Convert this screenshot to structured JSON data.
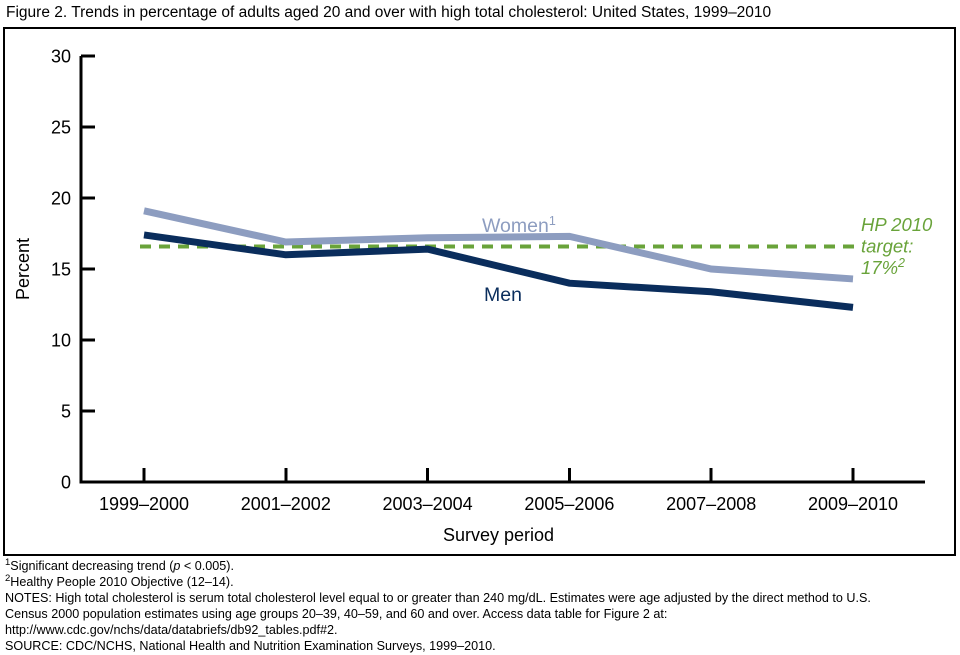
{
  "chart_data": {
    "type": "line",
    "title": "Figure 2. Trends in percentage of adults aged 20 and over with high total cholesterol: United States, 1999–2010",
    "xlabel": "Survey period",
    "ylabel": "Percent",
    "ylim": [
      0,
      30
    ],
    "yticks": [
      0,
      5,
      10,
      15,
      20,
      25,
      30
    ],
    "grid": false,
    "legend_position": "inline-labels",
    "categories": [
      "1999–2000",
      "2001–2002",
      "2003–2004",
      "2005–2006",
      "2007–2008",
      "2009–2010"
    ],
    "series": [
      {
        "name": "Women",
        "sup": "1",
        "color": "#8d9dc0",
        "values": [
          19.1,
          16.9,
          17.2,
          17.3,
          15.0,
          14.3
        ]
      },
      {
        "name": "Men",
        "sup": "",
        "color": "#0a2d5c",
        "values": [
          17.4,
          16.0,
          16.4,
          14.0,
          13.4,
          12.3
        ]
      }
    ],
    "target_line": {
      "label_lines": [
        "HP 2010",
        "target:",
        "17%"
      ],
      "label_sup": "2",
      "value_label": "17%",
      "drawn_at": 16.6,
      "color": "#69a33a",
      "style": "dashed"
    },
    "axis_color": "#000000"
  },
  "footnotes": {
    "fn1_sup": "1",
    "fn1_pre": "Significant decreasing trend (",
    "fn1_italic": "p",
    "fn1_post": " < 0.005).",
    "fn2_sup": "2",
    "fn2_text": "Healthy People 2010 Objective (12–14).",
    "notes_line1": "NOTES: High total cholesterol is serum total cholesterol level equal to or greater than 240 mg/dL. Estimates were age adjusted by the direct method to U.S.",
    "notes_line2": "Census 2000 population estimates using age groups 20–39, 40–59, and 60 and over. Access data table for Figure 2 at:",
    "notes_line3": "http://www.cdc.gov/nchs/data/databriefs/db92_tables.pdf#2.",
    "source": "SOURCE: CDC/NCHS, National Health and Nutrition Examination Surveys, 1999–2010."
  }
}
